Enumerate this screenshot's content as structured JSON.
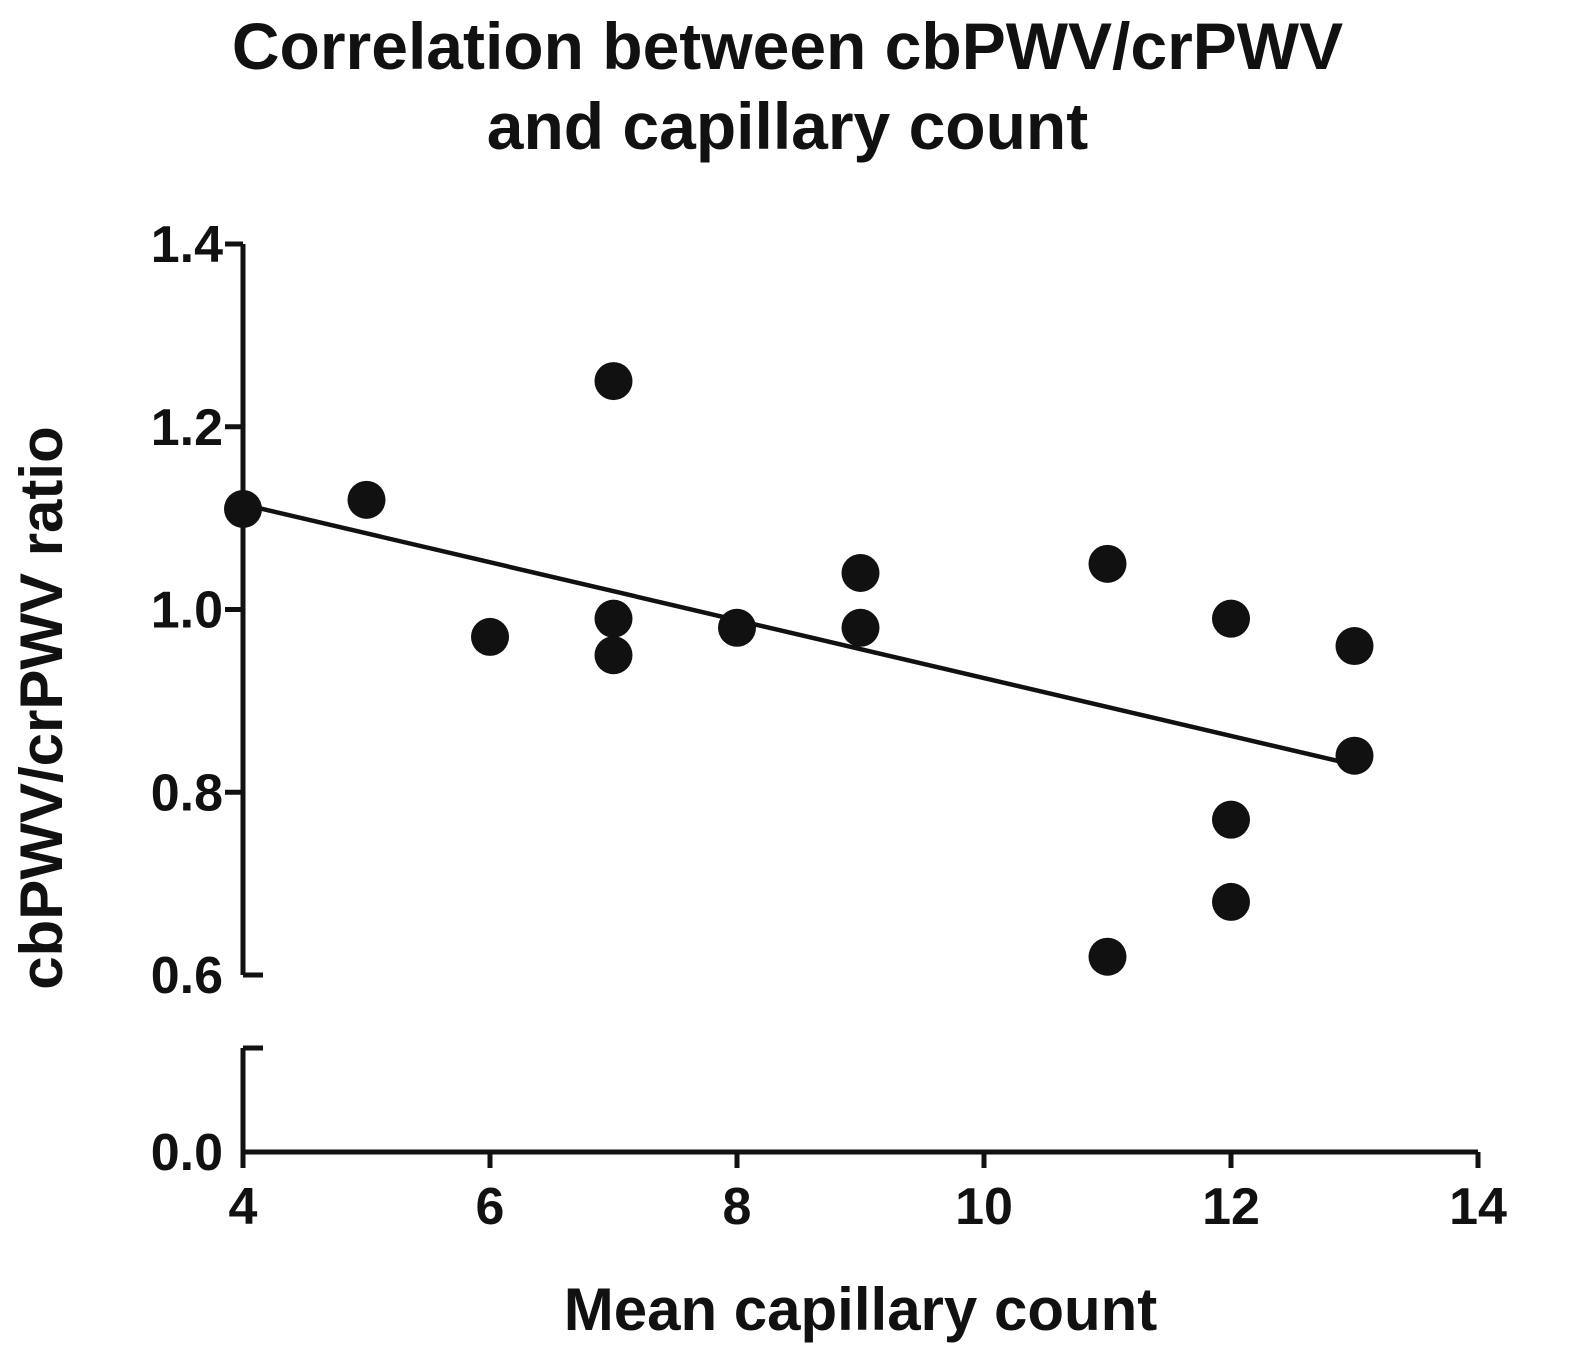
{
  "chart_data": {
    "type": "scatter",
    "title_lines": [
      "Correlation between cbPWV/crPWV",
      "and  capillary count"
    ],
    "xlabel": "Mean capillary count",
    "ylabel": "cbPWV/crPWV ratio",
    "xlim": [
      4,
      14
    ],
    "xticks": [
      "4",
      "6",
      "8",
      "10",
      "12",
      "14"
    ],
    "ylim_upper": [
      0.6,
      1.4
    ],
    "ylim_lower": [
      0.0,
      0.0
    ],
    "yticks": [
      "0.0",
      "0.6",
      "0.8",
      "1.0",
      "1.2",
      "1.4"
    ],
    "y_axis_break": true,
    "grid": false,
    "legend": "none",
    "series": [
      {
        "points": [
          {
            "x": 4,
            "y": 1.11
          },
          {
            "x": 5,
            "y": 1.12
          },
          {
            "x": 6,
            "y": 0.97
          },
          {
            "x": 7,
            "y": 1.25
          },
          {
            "x": 7,
            "y": 0.99
          },
          {
            "x": 7,
            "y": 0.95
          },
          {
            "x": 8,
            "y": 0.98
          },
          {
            "x": 9,
            "y": 1.04
          },
          {
            "x": 9,
            "y": 0.98
          },
          {
            "x": 11,
            "y": 1.05
          },
          {
            "x": 11,
            "y": 0.62
          },
          {
            "x": 12,
            "y": 0.99
          },
          {
            "x": 12,
            "y": 0.77
          },
          {
            "x": 12,
            "y": 0.68
          },
          {
            "x": 13,
            "y": 0.96
          },
          {
            "x": 13,
            "y": 0.84
          }
        ]
      }
    ],
    "regression_line": {
      "x": [
        4,
        13
      ],
      "y": [
        1.115,
        0.83
      ]
    },
    "colors": {
      "marker": "#111111",
      "line": "#111111",
      "axis": "#111111"
    }
  }
}
